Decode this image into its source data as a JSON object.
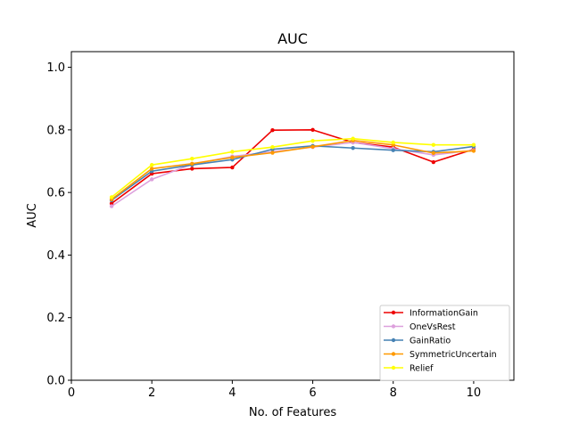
{
  "chart_data": {
    "type": "line",
    "title": "AUC",
    "xlabel": "No. of Features",
    "ylabel": "AUC",
    "xlim": [
      0,
      11
    ],
    "ylim": [
      0.0,
      1.05
    ],
    "x_ticks": [
      0,
      2,
      4,
      6,
      8,
      10
    ],
    "y_ticks": [
      0.0,
      0.2,
      0.4,
      0.6,
      0.8,
      1.0
    ],
    "x_tick_labels": [
      "0",
      "2",
      "4",
      "6",
      "8",
      "10"
    ],
    "y_tick_labels": [
      "0.0",
      "0.2",
      "0.4",
      "0.6",
      "0.8",
      "1.0"
    ],
    "x": [
      1,
      2,
      3,
      4,
      5,
      6,
      7,
      8,
      9,
      10
    ],
    "grid": false,
    "legend_position": "lower-right",
    "series": [
      {
        "name": "InformationGain",
        "color": "#ee0000",
        "values": [
          0.565,
          0.66,
          0.676,
          0.68,
          0.799,
          0.8,
          0.76,
          0.745,
          0.697,
          0.738
        ]
      },
      {
        "name": "OneVsRest",
        "color": "#dda0dd",
        "values": [
          0.556,
          0.642,
          0.69,
          0.715,
          0.73,
          0.745,
          0.76,
          0.74,
          0.72,
          0.735
        ]
      },
      {
        "name": "GainRatio",
        "color": "#4682b4",
        "values": [
          0.575,
          0.668,
          0.688,
          0.705,
          0.738,
          0.749,
          0.742,
          0.735,
          0.73,
          0.747
        ]
      },
      {
        "name": "SymmetricUncertain",
        "color": "#ff9900",
        "values": [
          0.578,
          0.676,
          0.692,
          0.712,
          0.727,
          0.746,
          0.766,
          0.752,
          0.726,
          0.733
        ]
      },
      {
        "name": "Relief",
        "color": "#ffff00",
        "values": [
          0.585,
          0.688,
          0.708,
          0.73,
          0.745,
          0.765,
          0.772,
          0.76,
          0.752,
          0.752
        ]
      }
    ]
  }
}
